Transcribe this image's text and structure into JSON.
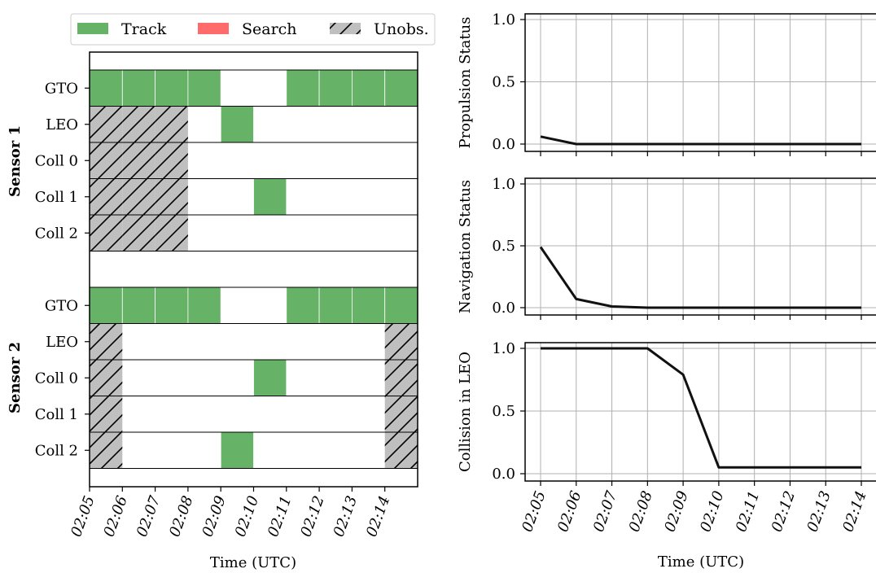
{
  "legend": {
    "items": [
      {
        "label": "Track",
        "color": "#66b266",
        "hatch": false
      },
      {
        "label": "Search",
        "color": "#ff6b6b",
        "hatch": false
      },
      {
        "label": "Unobs.",
        "color": "#bfbfbf",
        "hatch": true
      }
    ]
  },
  "chart_data": [
    {
      "type": "timeline",
      "xlabel": "Time (UTC)",
      "x_ticks": [
        "02:05",
        "02:06",
        "02:07",
        "02:08",
        "02:09",
        "02:10",
        "02:11",
        "02:12",
        "02:13",
        "02:14"
      ],
      "status_colors": {
        "track": "#66b266",
        "search": "#ff6b6b",
        "unobs": "#bfbfbf"
      },
      "groups": [
        {
          "name": "Sensor 1",
          "rows": [
            {
              "label": "GTO",
              "cells": [
                "track",
                "track",
                "track",
                "track",
                "empty",
                "empty",
                "track",
                "track",
                "track",
                "track"
              ]
            },
            {
              "label": "LEO",
              "cells": [
                "unobs",
                "unobs",
                "unobs",
                "empty",
                "track",
                "empty",
                "empty",
                "empty",
                "empty",
                "empty"
              ]
            },
            {
              "label": "Coll 0",
              "cells": [
                "unobs",
                "unobs",
                "unobs",
                "empty",
                "empty",
                "empty",
                "empty",
                "empty",
                "empty",
                "empty"
              ]
            },
            {
              "label": "Coll 1",
              "cells": [
                "unobs",
                "unobs",
                "unobs",
                "empty",
                "empty",
                "track",
                "empty",
                "empty",
                "empty",
                "empty"
              ]
            },
            {
              "label": "Coll 2",
              "cells": [
                "unobs",
                "unobs",
                "unobs",
                "empty",
                "empty",
                "empty",
                "empty",
                "empty",
                "empty",
                "empty"
              ]
            }
          ]
        },
        {
          "name": "Sensor 2",
          "rows": [
            {
              "label": "GTO",
              "cells": [
                "track",
                "track",
                "track",
                "track",
                "empty",
                "empty",
                "track",
                "track",
                "track",
                "track"
              ]
            },
            {
              "label": "LEO",
              "cells": [
                "unobs",
                "empty",
                "empty",
                "empty",
                "empty",
                "empty",
                "empty",
                "empty",
                "empty",
                "unobs"
              ]
            },
            {
              "label": "Coll 0",
              "cells": [
                "unobs",
                "empty",
                "empty",
                "empty",
                "empty",
                "track",
                "empty",
                "empty",
                "empty",
                "unobs"
              ]
            },
            {
              "label": "Coll 1",
              "cells": [
                "unobs",
                "empty",
                "empty",
                "empty",
                "empty",
                "empty",
                "empty",
                "empty",
                "empty",
                "unobs"
              ]
            },
            {
              "label": "Coll 2",
              "cells": [
                "unobs",
                "empty",
                "empty",
                "empty",
                "track",
                "empty",
                "empty",
                "empty",
                "empty",
                "unobs"
              ]
            }
          ]
        }
      ]
    },
    {
      "type": "line",
      "ylabel": "Propulsion Status",
      "ylim": [
        0,
        1
      ],
      "y_ticks": [
        "0.0",
        "0.5",
        "1.0"
      ],
      "grid": true,
      "x": [
        "02:05",
        "02:06",
        "02:07",
        "02:08",
        "02:09",
        "02:10",
        "02:11",
        "02:12",
        "02:13",
        "02:14"
      ],
      "values": [
        0.06,
        0.0,
        0.0,
        0.0,
        0.0,
        0.0,
        0.0,
        0.0,
        0.0,
        0.0
      ],
      "color": "#111111"
    },
    {
      "type": "line",
      "ylabel": "Navigation Status",
      "ylim": [
        0,
        1
      ],
      "y_ticks": [
        "0.0",
        "0.5",
        "1.0"
      ],
      "grid": true,
      "x": [
        "02:05",
        "02:06",
        "02:07",
        "02:08",
        "02:09",
        "02:10",
        "02:11",
        "02:12",
        "02:13",
        "02:14"
      ],
      "values": [
        0.49,
        0.07,
        0.01,
        0.0,
        0.0,
        0.0,
        0.0,
        0.0,
        0.0,
        0.0
      ],
      "color": "#111111"
    },
    {
      "type": "line",
      "ylabel": "Collision in LEO",
      "xlabel": "Time (UTC)",
      "ylim": [
        0,
        1
      ],
      "y_ticks": [
        "0.0",
        "0.5",
        "1.0"
      ],
      "grid": true,
      "x": [
        "02:05",
        "02:06",
        "02:07",
        "02:08",
        "02:09",
        "02:10",
        "02:11",
        "02:12",
        "02:13",
        "02:14"
      ],
      "values": [
        1.0,
        1.0,
        1.0,
        1.0,
        0.79,
        0.05,
        0.05,
        0.05,
        0.05,
        0.05
      ],
      "color": "#111111"
    }
  ]
}
